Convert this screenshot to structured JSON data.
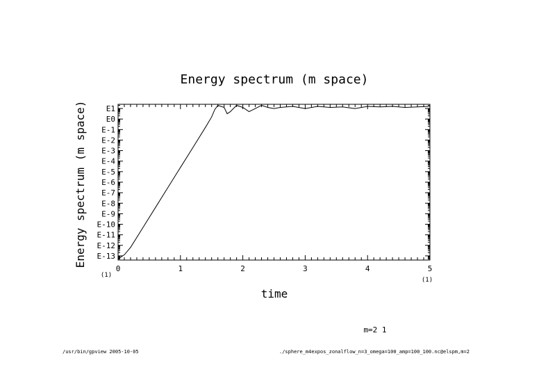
{
  "chart_data": {
    "type": "line",
    "title": "Energy spectrum (m space)",
    "xlabel": "time",
    "ylabel": "Energy spectrum (m space)",
    "xlim": [
      0,
      5
    ],
    "ylim": [
      -13.4,
      1.4
    ],
    "log_scale_y": true,
    "x_ticks": [
      "0",
      "1",
      "2",
      "3",
      "4",
      "5"
    ],
    "x_scale_note_left": "(1)",
    "x_scale_note_right": "(1)",
    "y_ticks": [
      "E1",
      "E0",
      "E-1",
      "E-2",
      "E-3",
      "E-4",
      "E-5",
      "E-6",
      "E-7",
      "E-8",
      "E-9",
      "E-10",
      "E-11",
      "E-12",
      "E-13"
    ],
    "series": [
      {
        "name": "m=2 1",
        "x": [
          0,
          0.1,
          0.2,
          0.4,
          0.6,
          0.8,
          1.0,
          1.2,
          1.4,
          1.5,
          1.55,
          1.6,
          1.7,
          1.75,
          1.8,
          1.9,
          2.0,
          2.1,
          2.2,
          2.3,
          2.4,
          2.5,
          2.6,
          2.8,
          3.0,
          3.2,
          3.4,
          3.6,
          3.8,
          4.0,
          4.2,
          4.4,
          4.6,
          4.8,
          5.0
        ],
        "y": [
          -13.3,
          -12.9,
          -12.2,
          -10.3,
          -8.4,
          -6.5,
          -4.6,
          -2.7,
          -0.8,
          0.2,
          0.9,
          1.3,
          1.1,
          0.5,
          0.7,
          1.3,
          1.1,
          0.7,
          1.0,
          1.3,
          1.1,
          1.0,
          1.1,
          1.2,
          1.0,
          1.2,
          1.1,
          1.15,
          1.0,
          1.2,
          1.15,
          1.2,
          1.1,
          1.15,
          1.2
        ]
      }
    ],
    "legend_label": "m=2 1",
    "grid": false
  },
  "footer": {
    "left": "/usr/bin/gpview  2005-10-05",
    "right": "./sphere_m4expos_zonalflow_n=3_omega=100_amp=100_100.nc@elspm,m=2"
  }
}
